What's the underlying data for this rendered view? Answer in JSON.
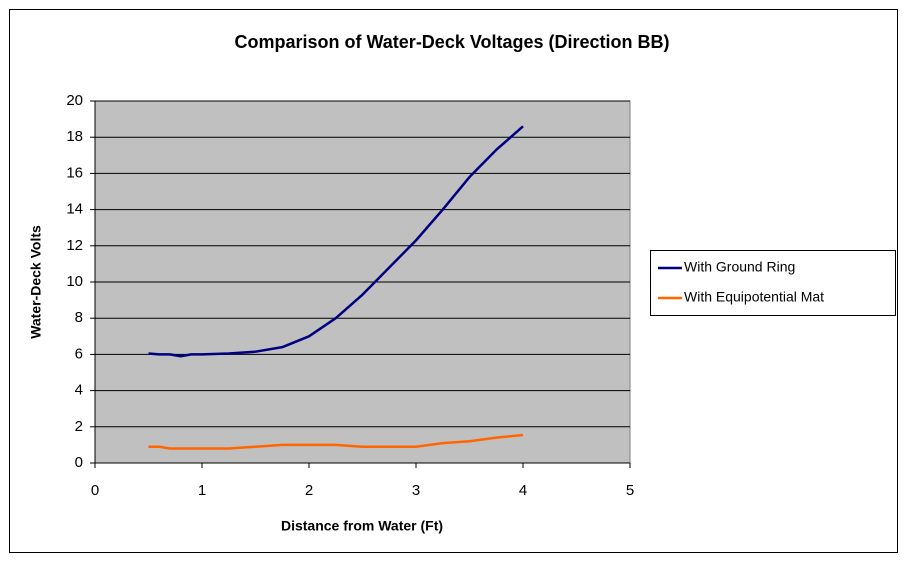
{
  "chart_data": {
    "type": "line",
    "title": "Comparison of Water-Deck Voltages (Direction BB)",
    "x_label": "Distance from Water (Ft)",
    "y_label": "Water-Deck Volts",
    "x": [
      0.5,
      0.6,
      0.7,
      0.8,
      0.9,
      1.0,
      1.25,
      1.5,
      1.75,
      2.0,
      2.25,
      2.5,
      2.75,
      3.0,
      3.25,
      3.5,
      3.75,
      4.0
    ],
    "series": [
      {
        "name": "With Ground Ring",
        "color": "#000080",
        "values": [
          6.05,
          6.0,
          6.0,
          5.9,
          6.0,
          6.0,
          6.05,
          6.15,
          6.4,
          7.0,
          8.0,
          9.3,
          10.8,
          12.3,
          14.0,
          15.8,
          17.3,
          18.6
        ]
      },
      {
        "name": "With Equipotential Mat",
        "color": "#ff6600",
        "values": [
          0.9,
          0.9,
          0.8,
          0.8,
          0.8,
          0.8,
          0.8,
          0.9,
          1.0,
          1.0,
          1.0,
          0.9,
          0.9,
          0.9,
          1.1,
          1.2,
          1.4,
          1.55
        ]
      }
    ],
    "xlim": [
      0,
      5
    ],
    "xticks": [
      0,
      1,
      2,
      3,
      4,
      5
    ],
    "ylim": [
      0,
      20
    ],
    "yticks": [
      0,
      2,
      4,
      6,
      8,
      10,
      12,
      14,
      16,
      18,
      20
    ],
    "grid": true,
    "legend": "right",
    "plot_background": "#c0c0c0"
  }
}
